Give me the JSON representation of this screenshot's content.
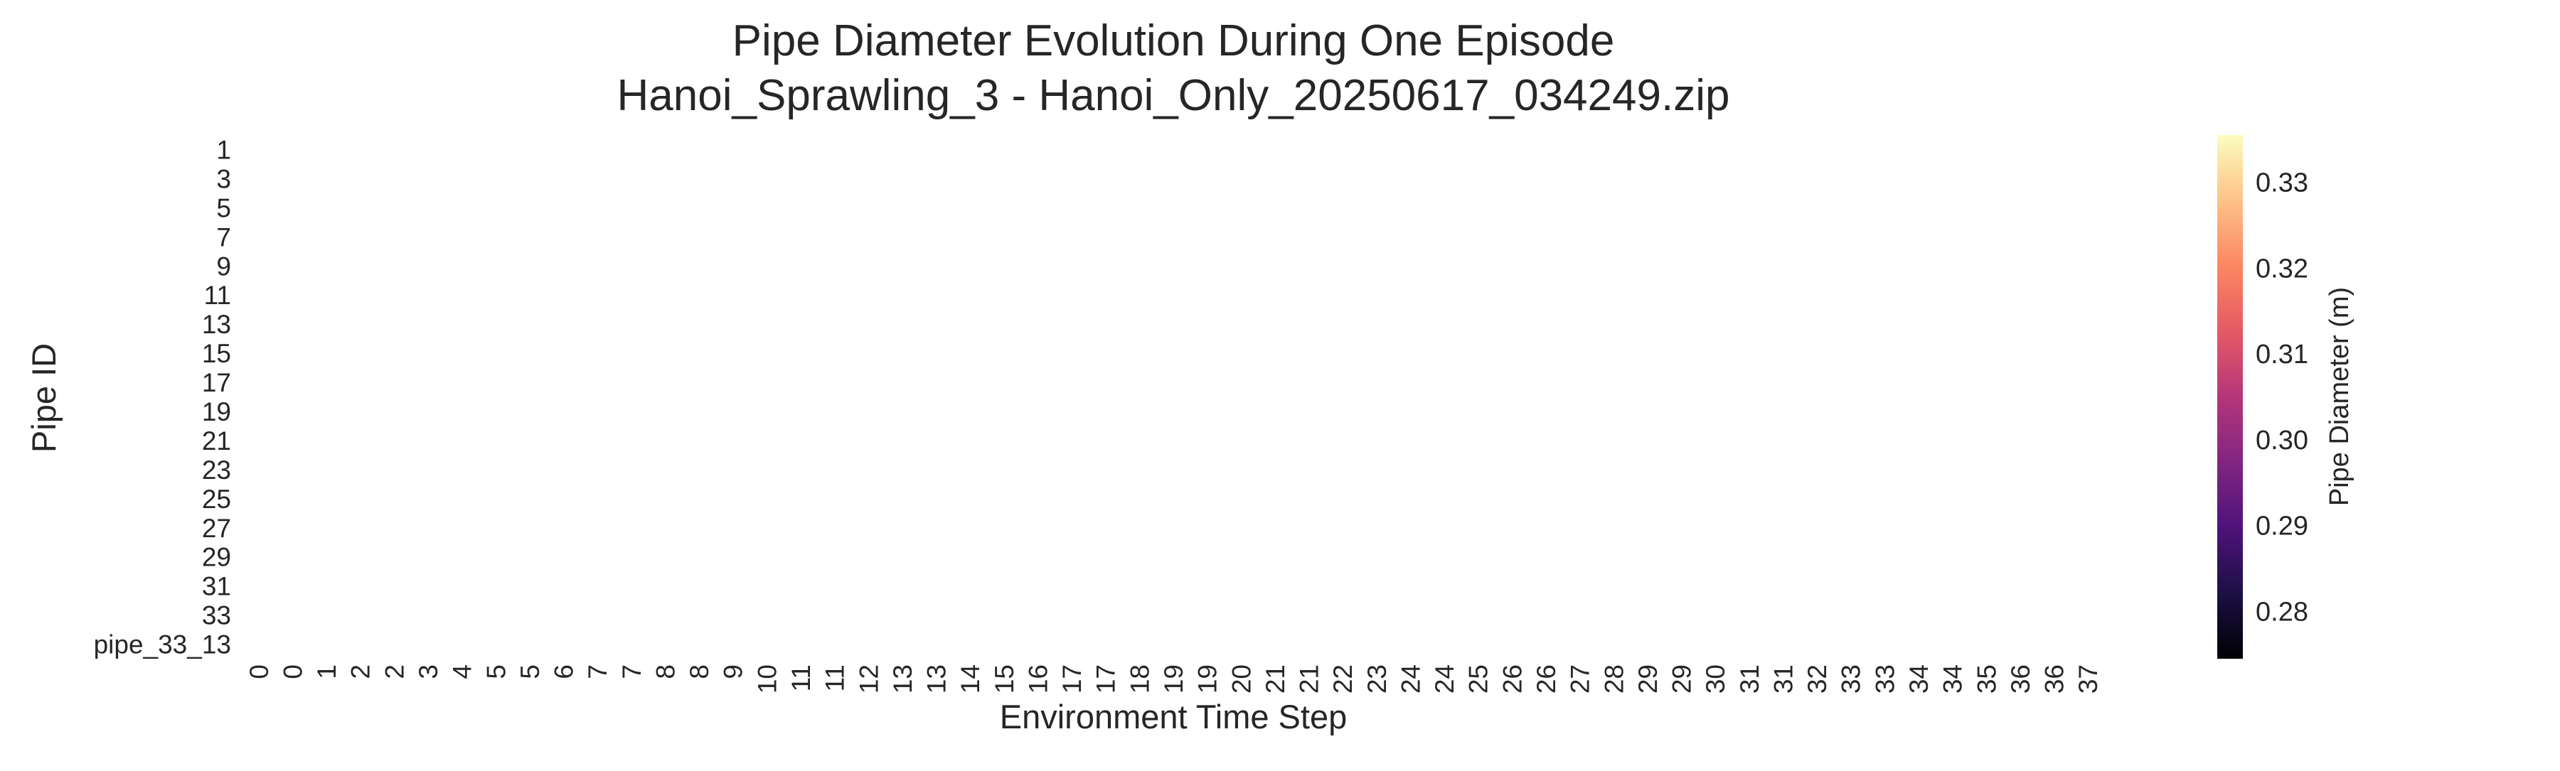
{
  "chart_data": {
    "type": "heatmap",
    "title_line1": "Pipe Diameter Evolution During One Episode",
    "title_line2": "Hanoi_Sprawling_3 - Hanoi_Only_20250617_034249.zip",
    "xlabel": "Environment Time Step",
    "ylabel": "Pipe ID",
    "y_tick_labels": [
      "1",
      "3",
      "5",
      "7",
      "9",
      "11",
      "13",
      "15",
      "17",
      "19",
      "21",
      "23",
      "25",
      "27",
      "29",
      "31",
      "33",
      "pipe_33_13"
    ],
    "x_tick_labels": [
      "0",
      "0",
      "1",
      "2",
      "2",
      "3",
      "4",
      "5",
      "5",
      "6",
      "7",
      "7",
      "8",
      "8",
      "9",
      "10",
      "11",
      "11",
      "12",
      "13",
      "13",
      "14",
      "15",
      "16",
      "17",
      "17",
      "18",
      "19",
      "19",
      "20",
      "21",
      "21",
      "22",
      "23",
      "24",
      "24",
      "25",
      "26",
      "26",
      "27",
      "28",
      "29",
      "29",
      "30",
      "31",
      "31",
      "32",
      "33",
      "33",
      "34",
      "34",
      "35",
      "36",
      "36",
      "37"
    ],
    "values": [],
    "colorbar": {
      "label": "Pipe Diameter (m)",
      "ticks": [
        0.28,
        0.29,
        0.3,
        0.31,
        0.32,
        0.33
      ],
      "tick_labels": [
        "0.28",
        "0.29",
        "0.30",
        "0.31",
        "0.32",
        "0.33"
      ],
      "range": [
        0.2745,
        0.3355
      ],
      "colormap": "magma",
      "colors": [
        "#000004",
        "#1c1044",
        "#4f127b",
        "#812581",
        "#b5367a",
        "#e55964",
        "#fb8761",
        "#fec287",
        "#fcfdbf"
      ]
    },
    "grid": false
  }
}
